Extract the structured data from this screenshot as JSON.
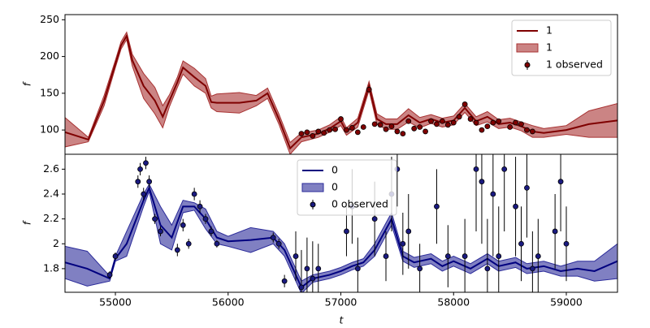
{
  "chart_data": [
    {
      "type": "line",
      "ylabel": "f",
      "legend": "upper right",
      "xlim": [
        54553,
        59454
      ],
      "ylim": [
        67,
        257
      ],
      "yticks": [
        100,
        150,
        200,
        250
      ],
      "line": {
        "name": "1",
        "color": "#7f0000",
        "x": [
          54553,
          54760,
          54900,
          55000,
          55050,
          55100,
          55150,
          55250,
          55350,
          55420,
          55480,
          55550,
          55600,
          55700,
          55800,
          55850,
          55900,
          56100,
          56250,
          56350,
          56450,
          56550,
          56650,
          56800,
          56900,
          57000,
          57050,
          57150,
          57250,
          57320,
          57400,
          57500,
          57600,
          57700,
          57800,
          57900,
          58000,
          58100,
          58200,
          58300,
          58400,
          58500,
          58600,
          58700,
          58800,
          59000,
          59200,
          59454
        ],
        "values": [
          97,
          87,
          140,
          190,
          215,
          228,
          195,
          160,
          140,
          118,
          140,
          165,
          185,
          172,
          160,
          138,
          137,
          137,
          140,
          150,
          115,
          75,
          90,
          95,
          102,
          112,
          98,
          110,
          160,
          115,
          108,
          108,
          120,
          110,
          115,
          110,
          113,
          130,
          112,
          118,
          108,
          110,
          105,
          98,
          96,
          100,
          108,
          113
        ]
      },
      "band": {
        "name": "1",
        "color": "#a83232",
        "lower": [
          77,
          84,
          133,
          185,
          210,
          223,
          187,
          143,
          122,
          103,
          132,
          158,
          176,
          160,
          150,
          130,
          125,
          123,
          133,
          143,
          108,
          67,
          84,
          90,
          97,
          106,
          93,
          104,
          154,
          108,
          101,
          101,
          111,
          103,
          109,
          104,
          107,
          124,
          106,
          111,
          102,
          104,
          99,
          90,
          90,
          94,
          90,
          90
        ],
        "upper": [
          117,
          90,
          147,
          195,
          220,
          233,
          203,
          177,
          158,
          133,
          148,
          172,
          194,
          184,
          170,
          146,
          149,
          151,
          147,
          157,
          122,
          83,
          96,
          100,
          107,
          118,
          103,
          116,
          166,
          122,
          115,
          115,
          129,
          117,
          121,
          116,
          119,
          136,
          118,
          125,
          114,
          116,
          111,
          106,
          102,
          106,
          126,
          136
        ]
      },
      "observed": {
        "name": "1 observed",
        "color": "#800000",
        "x": [
          56650,
          56700,
          56750,
          56800,
          56850,
          56900,
          56950,
          57000,
          57050,
          57100,
          57150,
          57200,
          57250,
          57300,
          57350,
          57400,
          57450,
          57500,
          57550,
          57600,
          57650,
          57700,
          57750,
          57800,
          57850,
          57900,
          57950,
          58000,
          58050,
          58100,
          58150,
          58200,
          58250,
          58300,
          58350,
          58400,
          58500,
          58550,
          58600,
          58650,
          58700
        ],
        "values": [
          95,
          97,
          92,
          98,
          96,
          100,
          101,
          115,
          100,
          103,
          97,
          104,
          155,
          108,
          107,
          101,
          105,
          98,
          95,
          112,
          102,
          104,
          98,
          112,
          108,
          112,
          107,
          110,
          118,
          135,
          115,
          110,
          100,
          105,
          110,
          112,
          104,
          110,
          108,
          100,
          98
        ],
        "errors": [
          3,
          3,
          3,
          3,
          3,
          3,
          3,
          3,
          3,
          3,
          3,
          3,
          3,
          3,
          3,
          3,
          3,
          3,
          3,
          3,
          3,
          3,
          3,
          3,
          3,
          3,
          3,
          3,
          3,
          3,
          3,
          3,
          3,
          3,
          3,
          3,
          3,
          3,
          3,
          3,
          3
        ]
      }
    },
    {
      "type": "line",
      "ylabel": "f",
      "xlabel": "t",
      "legend": "upper center",
      "xlim": [
        54553,
        59454
      ],
      "ylim": [
        1.61,
        2.72
      ],
      "yticks": [
        1.8,
        2.0,
        2.2,
        2.4,
        2.6
      ],
      "xticks": [
        55000,
        56000,
        57000,
        58000,
        59000
      ],
      "line": {
        "name": "0",
        "color": "#00007f",
        "x": [
          54553,
          54750,
          54950,
          55000,
          55100,
          55250,
          55300,
          55400,
          55500,
          55600,
          55700,
          55800,
          55900,
          56000,
          56200,
          56400,
          56500,
          56650,
          56750,
          56900,
          57000,
          57100,
          57200,
          57300,
          57450,
          57550,
          57650,
          57800,
          57900,
          58000,
          58150,
          58300,
          58400,
          58550,
          58650,
          58800,
          58950,
          59100,
          59250,
          59454
        ],
        "values": [
          1.85,
          1.8,
          1.72,
          1.88,
          2.0,
          2.35,
          2.45,
          2.15,
          2.05,
          2.3,
          2.3,
          2.2,
          2.05,
          2.02,
          2.03,
          2.05,
          1.95,
          1.65,
          1.72,
          1.75,
          1.78,
          1.82,
          1.85,
          1.95,
          2.2,
          1.9,
          1.85,
          1.88,
          1.82,
          1.86,
          1.8,
          1.88,
          1.82,
          1.85,
          1.8,
          1.82,
          1.78,
          1.8,
          1.78,
          1.86
        ]
      },
      "band": {
        "name": "0",
        "color": "#2b2b9a",
        "lower": [
          1.72,
          1.66,
          1.7,
          1.86,
          1.9,
          2.3,
          2.42,
          2.0,
          1.95,
          2.25,
          2.27,
          2.12,
          2.0,
          1.98,
          1.93,
          2.0,
          1.9,
          1.6,
          1.69,
          1.72,
          1.75,
          1.79,
          1.82,
          1.9,
          2.15,
          1.86,
          1.81,
          1.84,
          1.78,
          1.82,
          1.76,
          1.84,
          1.78,
          1.81,
          1.76,
          1.78,
          1.74,
          1.74,
          1.7,
          1.72
        ],
        "upper": [
          1.98,
          1.94,
          1.74,
          1.9,
          2.1,
          2.4,
          2.48,
          2.3,
          2.15,
          2.35,
          2.33,
          2.28,
          2.1,
          2.06,
          2.13,
          2.1,
          2.0,
          1.7,
          1.75,
          1.78,
          1.81,
          1.85,
          1.88,
          2.0,
          2.25,
          1.94,
          1.89,
          1.92,
          1.86,
          1.9,
          1.84,
          1.92,
          1.86,
          1.89,
          1.84,
          1.86,
          1.82,
          1.86,
          1.86,
          2.0
        ]
      },
      "observed": {
        "name": "0 observed",
        "color": "#1a1a80",
        "x": [
          54950,
          55000,
          55200,
          55220,
          55250,
          55270,
          55300,
          55350,
          55400,
          55550,
          55600,
          55650,
          55700,
          55750,
          55800,
          55850,
          55900,
          56400,
          56450,
          56500,
          56600,
          56650,
          56700,
          56750,
          56800,
          57050,
          57100,
          57150,
          57300,
          57400,
          57450,
          57500,
          57550,
          57600,
          57700,
          57850,
          57950,
          58100,
          58200,
          58250,
          58300,
          58350,
          58400,
          58450,
          58550,
          58600,
          58650,
          58700,
          58750,
          58900,
          58950,
          59000
        ],
        "values": [
          1.75,
          1.9,
          2.5,
          2.6,
          2.4,
          2.65,
          2.5,
          2.2,
          2.1,
          1.95,
          2.15,
          2.0,
          2.4,
          2.3,
          2.2,
          2.1,
          2.0,
          2.05,
          2.0,
          1.7,
          1.9,
          1.65,
          1.8,
          1.72,
          1.8,
          2.1,
          2.3,
          1.8,
          2.2,
          1.9,
          2.4,
          2.6,
          2.0,
          2.1,
          1.8,
          2.3,
          1.9,
          1.9,
          2.6,
          2.5,
          1.8,
          2.4,
          1.9,
          2.6,
          2.3,
          2.0,
          2.45,
          1.8,
          1.9,
          2.1,
          2.5,
          2.0
        ],
        "errors": [
          0.03,
          0.03,
          0.05,
          0.05,
          0.05,
          0.05,
          0.05,
          0.04,
          0.04,
          0.05,
          0.05,
          0.04,
          0.05,
          0.05,
          0.04,
          0.04,
          0.03,
          0.04,
          0.04,
          0.05,
          0.2,
          0.3,
          0.25,
          0.3,
          0.2,
          0.2,
          0.3,
          0.25,
          0.3,
          0.2,
          0.3,
          0.3,
          0.25,
          0.3,
          0.2,
          0.3,
          0.25,
          0.3,
          0.5,
          0.5,
          0.4,
          0.5,
          0.4,
          0.5,
          0.4,
          0.3,
          0.4,
          0.3,
          0.3,
          0.3,
          0.4,
          0.3
        ]
      }
    }
  ]
}
